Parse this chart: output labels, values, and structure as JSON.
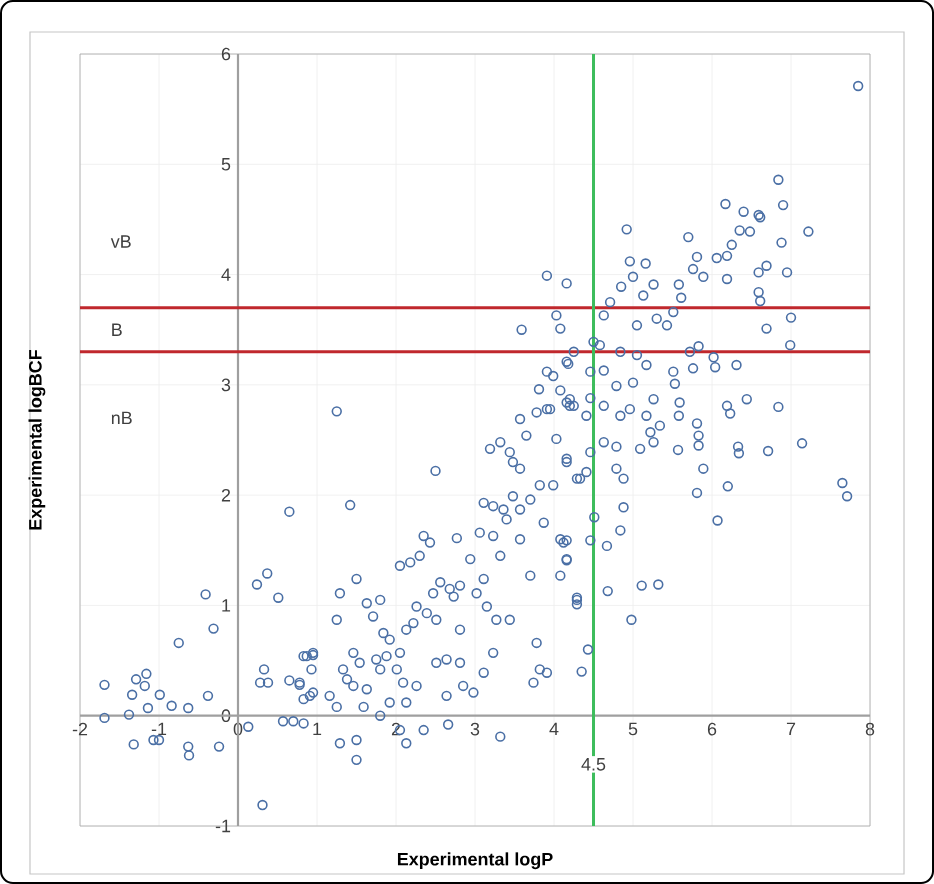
{
  "chart_data": {
    "type": "scatter",
    "xlabel": "Experimental logP",
    "ylabel": "Experimental logBCF",
    "xlim": [
      -2,
      8
    ],
    "ylim": [
      -1,
      6
    ],
    "xticks": [
      -2,
      -1,
      0,
      1,
      2,
      3,
      4,
      5,
      6,
      7,
      8
    ],
    "yticks": [
      -1,
      0,
      1,
      2,
      3,
      4,
      5,
      6
    ],
    "grid": true,
    "marker": "circle",
    "series": [
      {
        "color": "#4a6fa5",
        "x": [
          -1.69,
          -1.69,
          -1.38,
          -1.34,
          -1.32,
          -1.29,
          -1.16,
          -1.18,
          -1.14,
          -1.07,
          -1.0,
          -0.99,
          -0.84,
          -0.75,
          -0.63,
          -0.63,
          -0.62,
          -0.41,
          -0.31,
          -0.38,
          -0.24,
          0.13,
          0.31,
          0.24,
          0.37,
          0.51,
          0.65,
          0.33,
          0.28,
          0.38,
          0.57,
          0.7,
          0.83,
          0.65,
          0.78,
          0.83,
          0.95,
          0.93,
          0.83,
          0.91,
          1.25,
          1.42,
          2.5,
          1.5,
          1.29,
          1.25,
          0.87,
          0.95,
          0.78,
          0.95,
          1.16,
          1.25,
          1.33,
          1.38,
          1.46,
          1.54,
          1.63,
          1.71,
          1.8,
          1.84,
          1.92,
          1.88,
          1.75,
          1.8,
          1.46,
          1.63,
          1.59,
          1.29,
          1.5,
          1.5,
          1.8,
          1.92,
          2.13,
          2.05,
          2.13,
          2.35,
          2.01,
          2.09,
          2.26,
          2.05,
          2.13,
          2.22,
          2.26,
          2.39,
          2.51,
          2.47,
          2.56,
          2.68,
          2.05,
          2.18,
          2.3,
          2.35,
          2.43,
          2.77,
          2.64,
          2.51,
          2.81,
          2.85,
          2.98,
          2.64,
          2.66,
          2.81,
          2.73,
          2.81,
          2.94,
          3.02,
          3.11,
          3.06,
          3.23,
          3.32,
          3.15,
          3.27,
          3.44,
          3.23,
          3.11,
          3.32,
          3.11,
          3.23,
          3.36,
          3.4,
          3.48,
          3.57,
          3.7,
          3.78,
          3.82,
          3.74,
          3.91,
          4.08,
          4.16,
          4.12,
          4.29,
          3.19,
          3.32,
          3.44,
          3.48,
          3.57,
          3.57,
          3.78,
          3.95,
          4.2,
          4.41,
          3.65,
          4.03,
          4.16,
          4.33,
          4.46,
          3.99,
          3.87,
          4.08,
          3.7,
          3.57,
          3.82,
          4.92,
          5.7,
          6.17,
          6.4,
          6.61,
          6.9,
          7.22,
          6.35,
          6.48,
          6.25,
          6.06,
          6.19,
          5.81,
          5.89,
          5.76,
          6.88,
          6.69,
          6.95,
          6.59,
          6.19,
          6.59,
          6.61,
          7.0,
          6.69,
          6.99,
          4.96,
          5.16,
          4.85,
          5.0,
          5.13,
          5.26,
          5.58,
          5.61,
          4.71,
          4.63,
          5.05,
          5.3,
          5.43,
          5.51,
          4.16,
          4.25,
          4.5,
          4.58,
          4.84,
          5.05,
          5.17,
          5.72,
          5.83,
          6.02,
          6.31,
          5.76,
          4.16,
          4.46,
          4.63,
          4.79,
          5.0,
          5.51,
          5.53,
          6.04,
          4.2,
          4.46,
          4.63,
          4.84,
          4.96,
          5.26,
          5.17,
          5.59,
          5.58,
          6.19,
          6.23,
          6.44,
          6.84,
          5.22,
          5.34,
          5.81,
          5.83,
          5.83,
          5.26,
          5.09,
          5.57,
          6.33,
          6.34,
          6.71,
          7.14,
          4.16,
          4.41,
          4.29,
          4.63,
          4.79,
          4.79,
          4.88,
          4.88,
          4.84,
          4.51,
          4.67,
          4.46,
          5.89,
          5.81,
          6.2,
          6.07,
          7.65,
          7.71,
          4.16,
          4.16,
          4.68,
          4.29,
          4.29,
          5.11,
          5.32,
          4.98,
          4.43,
          4.35,
          7.85,
          6.84,
          6.59,
          3.91,
          4.03,
          4.08,
          3.59,
          4.18,
          3.91,
          3.99,
          3.81,
          4.08,
          4.16,
          4.25,
          3.91
        ],
        "values": [
          0.28,
          -0.02,
          0.01,
          0.19,
          -0.26,
          0.33,
          0.38,
          0.27,
          0.07,
          -0.22,
          -0.22,
          0.19,
          0.09,
          0.66,
          0.07,
          -0.28,
          -0.36,
          1.1,
          0.79,
          0.18,
          -0.28,
          -0.1,
          -0.81,
          1.19,
          1.29,
          1.07,
          1.85,
          0.42,
          0.3,
          0.3,
          -0.05,
          -0.05,
          -0.07,
          0.32,
          0.28,
          0.54,
          0.55,
          0.42,
          0.15,
          0.18,
          2.76,
          1.91,
          2.22,
          1.24,
          1.11,
          0.87,
          0.54,
          0.57,
          0.3,
          0.21,
          0.18,
          0.08,
          0.42,
          0.33,
          0.57,
          0.48,
          1.02,
          0.9,
          1.05,
          0.75,
          0.69,
          0.54,
          0.51,
          0.42,
          0.27,
          0.24,
          0.08,
          -0.25,
          -0.22,
          -0.4,
          0.0,
          0.12,
          0.12,
          -0.13,
          -0.25,
          -0.13,
          0.42,
          0.3,
          0.27,
          0.57,
          0.78,
          0.84,
          0.99,
          0.93,
          0.87,
          1.11,
          1.21,
          1.15,
          1.36,
          1.39,
          1.45,
          1.63,
          1.57,
          1.61,
          0.51,
          0.48,
          0.48,
          0.27,
          0.21,
          0.18,
          -0.08,
          0.78,
          1.08,
          1.18,
          1.42,
          1.11,
          1.24,
          1.66,
          1.63,
          1.45,
          0.99,
          0.87,
          0.87,
          0.57,
          0.39,
          -0.19,
          1.93,
          1.9,
          1.87,
          1.78,
          1.99,
          1.6,
          1.27,
          0.66,
          0.42,
          0.3,
          0.39,
          1.27,
          1.42,
          1.57,
          1.05,
          2.42,
          2.48,
          2.39,
          2.3,
          2.24,
          2.69,
          2.75,
          2.78,
          2.81,
          2.72,
          2.54,
          2.51,
          2.33,
          2.15,
          2.39,
          2.09,
          1.75,
          1.6,
          1.96,
          1.87,
          2.09,
          4.41,
          4.34,
          4.64,
          4.57,
          4.52,
          4.63,
          4.39,
          4.4,
          4.39,
          4.27,
          4.15,
          4.17,
          4.16,
          3.98,
          4.05,
          4.29,
          4.08,
          4.02,
          4.02,
          3.96,
          3.84,
          3.76,
          3.61,
          3.51,
          3.36,
          4.12,
          4.1,
          3.89,
          3.98,
          3.81,
          3.91,
          3.91,
          3.79,
          3.75,
          3.63,
          3.54,
          3.6,
          3.54,
          3.66,
          3.92,
          3.3,
          3.39,
          3.36,
          3.3,
          3.27,
          3.18,
          3.3,
          3.35,
          3.25,
          3.18,
          3.15,
          3.21,
          3.12,
          3.13,
          2.99,
          3.02,
          3.12,
          3.01,
          3.16,
          2.87,
          2.88,
          2.81,
          2.72,
          2.78,
          2.87,
          2.72,
          2.84,
          2.72,
          2.81,
          2.74,
          2.87,
          2.8,
          2.57,
          2.63,
          2.65,
          2.54,
          2.45,
          2.48,
          2.42,
          2.41,
          2.44,
          2.38,
          2.4,
          2.47,
          2.3,
          2.21,
          2.15,
          2.48,
          2.44,
          2.24,
          2.15,
          1.89,
          1.68,
          1.8,
          1.54,
          1.59,
          2.24,
          2.02,
          2.08,
          1.77,
          2.11,
          1.99,
          1.59,
          1.41,
          1.13,
          1.07,
          1.01,
          1.18,
          1.19,
          0.87,
          0.6,
          0.4,
          5.71,
          4.86,
          4.54,
          3.99,
          3.63,
          3.51,
          3.5,
          3.19,
          3.12,
          3.08,
          2.96,
          2.95,
          2.84,
          2.81,
          2.78
        ]
      }
    ],
    "ref_lines": [
      {
        "axis": "y",
        "value": 3.3,
        "color": "#c0282d"
      },
      {
        "axis": "y",
        "value": 3.7,
        "color": "#c0282d"
      },
      {
        "axis": "x",
        "value": 4.5,
        "label": "4.5",
        "color": "#3dbd5c"
      }
    ],
    "annotations": [
      "vB",
      "B",
      "nB"
    ]
  }
}
